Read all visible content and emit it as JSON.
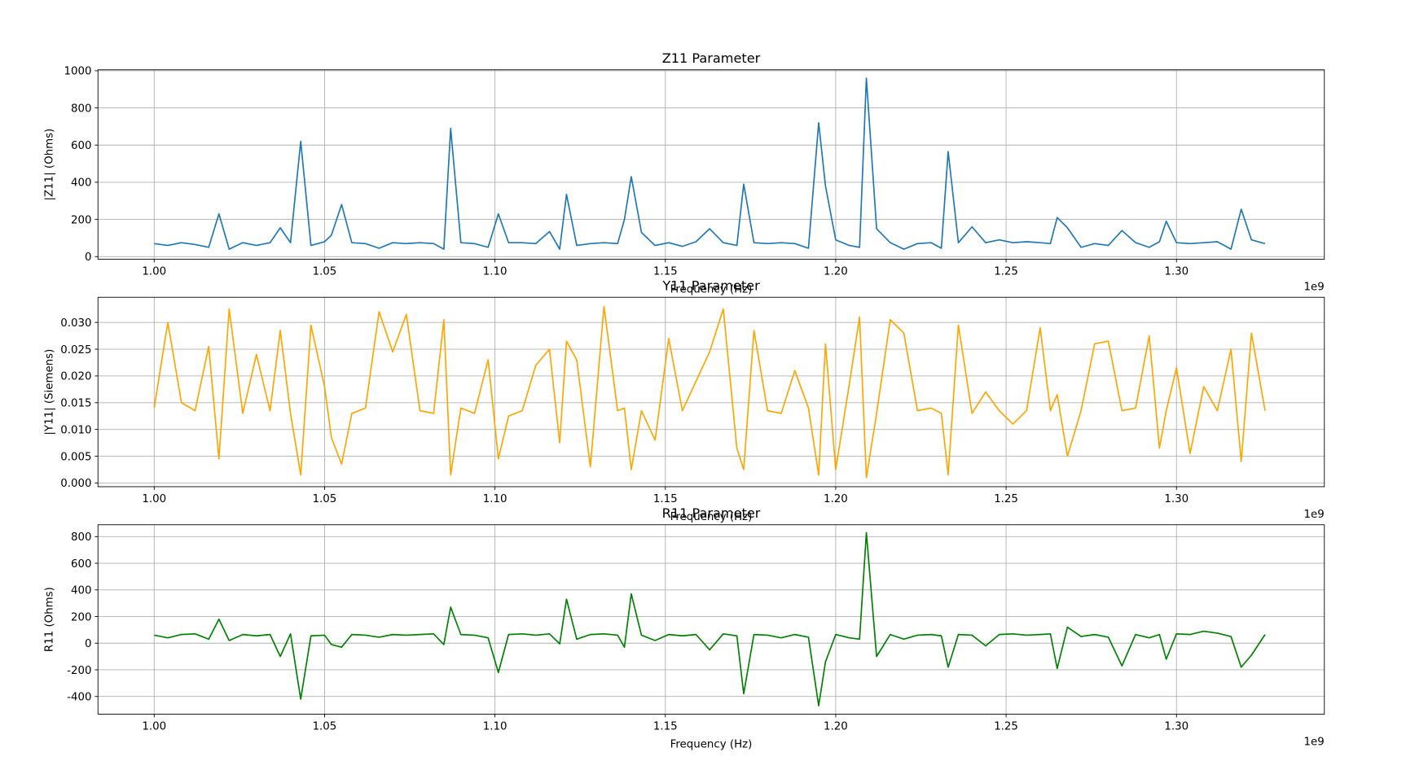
{
  "chart_data": [
    {
      "type": "line",
      "title": "Z11 Parameter",
      "xlabel": "Frequency (Hz)",
      "ylabel": "|Z11| (Ohms)",
      "x_offset_label": "1e9",
      "color": "#1f77b4",
      "grid": true,
      "x": [
        1000000000.0,
        1004000000.0,
        1008000000.0,
        1012000000.0,
        1016000000.0,
        1019000000.0,
        1022000000.0,
        1026000000.0,
        1030000000.0,
        1034000000.0,
        1037000000.0,
        1040000000.0,
        1043000000.0,
        1046000000.0,
        1050000000.0,
        1052000000.0,
        1055000000.0,
        1058000000.0,
        1062000000.0,
        1066000000.0,
        1070000000.0,
        1074000000.0,
        1078000000.0,
        1082000000.0,
        1085000000.0,
        1087000000.0,
        1090000000.0,
        1094000000.0,
        1098000000.0,
        1101000000.0,
        1104000000.0,
        1108000000.0,
        1112000000.0,
        1116000000.0,
        1119000000.0,
        1121000000.0,
        1124000000.0,
        1128000000.0,
        1132000000.0,
        1136000000.0,
        1138000000.0,
        1140000000.0,
        1143000000.0,
        1147000000.0,
        1151000000.0,
        1155000000.0,
        1159000000.0,
        1163000000.0,
        1167000000.0,
        1171000000.0,
        1173000000.0,
        1176000000.0,
        1180000000.0,
        1184000000.0,
        1188000000.0,
        1192000000.0,
        1195000000.0,
        1197000000.0,
        1200000000.0,
        1204000000.0,
        1207000000.0,
        1209000000.0,
        1212000000.0,
        1216000000.0,
        1220000000.0,
        1224000000.0,
        1228000000.0,
        1231000000.0,
        1233000000.0,
        1236000000.0,
        1240000000.0,
        1244000000.0,
        1248000000.0,
        1252000000.0,
        1256000000.0,
        1260000000.0,
        1263000000.0,
        1265000000.0,
        1268000000.0,
        1272000000.0,
        1276000000.0,
        1280000000.0,
        1284000000.0,
        1288000000.0,
        1292000000.0,
        1295000000.0,
        1297000000.0,
        1300000000.0,
        1304000000.0,
        1308000000.0,
        1312000000.0,
        1316000000.0,
        1319000000.0,
        1322000000.0,
        1326000000.0
      ],
      "values": [
        70,
        60,
        75,
        65,
        50,
        230,
        40,
        75,
        60,
        75,
        155,
        75,
        620,
        60,
        80,
        115,
        280,
        75,
        70,
        45,
        75,
        70,
        75,
        70,
        40,
        690,
        75,
        70,
        50,
        230,
        75,
        75,
        70,
        135,
        40,
        335,
        60,
        70,
        75,
        70,
        200,
        430,
        130,
        60,
        75,
        55,
        80,
        150,
        75,
        60,
        390,
        75,
        70,
        75,
        70,
        45,
        720,
        380,
        90,
        60,
        50,
        960,
        150,
        75,
        40,
        70,
        75,
        45,
        565,
        75,
        160,
        75,
        90,
        75,
        80,
        75,
        70,
        210,
        155,
        50,
        70,
        60,
        140,
        75,
        50,
        80,
        190,
        75,
        70,
        75,
        80,
        40,
        255,
        90,
        70
      ],
      "xlim": [
        983500000.0,
        1343400000.0
      ],
      "xticks": [
        {
          "value": 1000000000.0,
          "label": "1.00"
        },
        {
          "value": 1050000000.0,
          "label": "1.05"
        },
        {
          "value": 1100000000.0,
          "label": "1.10"
        },
        {
          "value": 1150000000.0,
          "label": "1.15"
        },
        {
          "value": 1200000000.0,
          "label": "1.20"
        },
        {
          "value": 1250000000.0,
          "label": "1.25"
        },
        {
          "value": 1300000000.0,
          "label": "1.30"
        }
      ],
      "ylim": [
        -14,
        1005
      ],
      "yticks": [
        0,
        200,
        400,
        600,
        800,
        1000
      ]
    },
    {
      "type": "line",
      "title": "Y11 Parameter",
      "xlabel": "Frequency (Hz)",
      "ylabel": "|Y11| (Siemens)",
      "x_offset_label": "1e9",
      "color": "#ffa500",
      "grid": true,
      "x": [
        1000000000.0,
        1004000000.0,
        1008000000.0,
        1012000000.0,
        1016000000.0,
        1019000000.0,
        1022000000.0,
        1026000000.0,
        1030000000.0,
        1034000000.0,
        1037000000.0,
        1040000000.0,
        1043000000.0,
        1046000000.0,
        1050000000.0,
        1052000000.0,
        1055000000.0,
        1058000000.0,
        1062000000.0,
        1066000000.0,
        1070000000.0,
        1074000000.0,
        1078000000.0,
        1082000000.0,
        1085000000.0,
        1087000000.0,
        1090000000.0,
        1094000000.0,
        1098000000.0,
        1101000000.0,
        1104000000.0,
        1108000000.0,
        1112000000.0,
        1116000000.0,
        1119000000.0,
        1121000000.0,
        1124000000.0,
        1128000000.0,
        1132000000.0,
        1136000000.0,
        1138000000.0,
        1140000000.0,
        1143000000.0,
        1147000000.0,
        1151000000.0,
        1155000000.0,
        1159000000.0,
        1163000000.0,
        1167000000.0,
        1171000000.0,
        1173000000.0,
        1176000000.0,
        1180000000.0,
        1184000000.0,
        1188000000.0,
        1192000000.0,
        1195000000.0,
        1197000000.0,
        1200000000.0,
        1204000000.0,
        1207000000.0,
        1209000000.0,
        1212000000.0,
        1216000000.0,
        1220000000.0,
        1224000000.0,
        1228000000.0,
        1231000000.0,
        1233000000.0,
        1236000000.0,
        1240000000.0,
        1244000000.0,
        1248000000.0,
        1252000000.0,
        1256000000.0,
        1260000000.0,
        1263000000.0,
        1265000000.0,
        1268000000.0,
        1272000000.0,
        1276000000.0,
        1280000000.0,
        1284000000.0,
        1288000000.0,
        1292000000.0,
        1295000000.0,
        1297000000.0,
        1300000000.0,
        1304000000.0,
        1308000000.0,
        1312000000.0,
        1316000000.0,
        1319000000.0,
        1322000000.0,
        1326000000.0
      ],
      "values": [
        0.014,
        0.03,
        0.015,
        0.0135,
        0.0255,
        0.0045,
        0.0325,
        0.013,
        0.024,
        0.0135,
        0.0285,
        0.013,
        0.0015,
        0.0295,
        0.018,
        0.0085,
        0.0035,
        0.013,
        0.014,
        0.032,
        0.0245,
        0.0315,
        0.0135,
        0.013,
        0.0305,
        0.0015,
        0.014,
        0.013,
        0.023,
        0.0045,
        0.0125,
        0.0135,
        0.022,
        0.025,
        0.0075,
        0.0265,
        0.023,
        0.003,
        0.033,
        0.0135,
        0.014,
        0.0025,
        0.0135,
        0.008,
        0.027,
        0.0135,
        0.019,
        0.0245,
        0.0325,
        0.0065,
        0.0025,
        0.0285,
        0.0135,
        0.013,
        0.021,
        0.014,
        0.0015,
        0.026,
        0.0025,
        0.0185,
        0.031,
        0.001,
        0.013,
        0.0305,
        0.028,
        0.0135,
        0.014,
        0.013,
        0.0015,
        0.0295,
        0.013,
        0.017,
        0.0135,
        0.011,
        0.0135,
        0.029,
        0.0135,
        0.0165,
        0.005,
        0.0135,
        0.026,
        0.0265,
        0.0135,
        0.014,
        0.0275,
        0.0065,
        0.0135,
        0.0215,
        0.0055,
        0.018,
        0.0135,
        0.025,
        0.004,
        0.028,
        0.0135
      ],
      "xlim": [
        983500000.0,
        1343400000.0
      ],
      "xticks": [
        {
          "value": 1000000000.0,
          "label": "1.00"
        },
        {
          "value": 1050000000.0,
          "label": "1.05"
        },
        {
          "value": 1100000000.0,
          "label": "1.10"
        },
        {
          "value": 1150000000.0,
          "label": "1.15"
        },
        {
          "value": 1200000000.0,
          "label": "1.20"
        },
        {
          "value": 1250000000.0,
          "label": "1.25"
        },
        {
          "value": 1300000000.0,
          "label": "1.30"
        }
      ],
      "ylim": [
        -0.0007,
        0.0347
      ],
      "yticks": [
        {
          "value": 0,
          "label": "0.000"
        },
        {
          "value": 0.005,
          "label": "0.005"
        },
        {
          "value": 0.01,
          "label": "0.010"
        },
        {
          "value": 0.015,
          "label": "0.015"
        },
        {
          "value": 0.02,
          "label": "0.020"
        },
        {
          "value": 0.025,
          "label": "0.025"
        },
        {
          "value": 0.03,
          "label": "0.030"
        }
      ]
    },
    {
      "type": "line",
      "title": "R11 Parameter",
      "xlabel": "Frequency (Hz)",
      "ylabel": "R11 (Ohms)",
      "x_offset_label": "1e9",
      "color": "#008000",
      "grid": true,
      "x": [
        1000000000.0,
        1004000000.0,
        1008000000.0,
        1012000000.0,
        1016000000.0,
        1019000000.0,
        1022000000.0,
        1026000000.0,
        1030000000.0,
        1034000000.0,
        1037000000.0,
        1040000000.0,
        1043000000.0,
        1046000000.0,
        1050000000.0,
        1052000000.0,
        1055000000.0,
        1058000000.0,
        1062000000.0,
        1066000000.0,
        1070000000.0,
        1074000000.0,
        1078000000.0,
        1082000000.0,
        1085000000.0,
        1087000000.0,
        1090000000.0,
        1094000000.0,
        1098000000.0,
        1101000000.0,
        1104000000.0,
        1108000000.0,
        1112000000.0,
        1116000000.0,
        1119000000.0,
        1121000000.0,
        1124000000.0,
        1128000000.0,
        1132000000.0,
        1136000000.0,
        1138000000.0,
        1140000000.0,
        1143000000.0,
        1147000000.0,
        1151000000.0,
        1155000000.0,
        1159000000.0,
        1163000000.0,
        1167000000.0,
        1171000000.0,
        1173000000.0,
        1176000000.0,
        1180000000.0,
        1184000000.0,
        1188000000.0,
        1192000000.0,
        1195000000.0,
        1197000000.0,
        1200000000.0,
        1204000000.0,
        1207000000.0,
        1209000000.0,
        1212000000.0,
        1216000000.0,
        1220000000.0,
        1224000000.0,
        1228000000.0,
        1231000000.0,
        1233000000.0,
        1236000000.0,
        1240000000.0,
        1244000000.0,
        1248000000.0,
        1252000000.0,
        1256000000.0,
        1260000000.0,
        1263000000.0,
        1265000000.0,
        1268000000.0,
        1272000000.0,
        1276000000.0,
        1280000000.0,
        1284000000.0,
        1288000000.0,
        1292000000.0,
        1295000000.0,
        1297000000.0,
        1300000000.0,
        1304000000.0,
        1308000000.0,
        1312000000.0,
        1316000000.0,
        1319000000.0,
        1322000000.0,
        1326000000.0
      ],
      "values": [
        60,
        40,
        65,
        70,
        30,
        180,
        20,
        65,
        55,
        65,
        -100,
        70,
        -420,
        55,
        60,
        -10,
        -30,
        65,
        60,
        45,
        65,
        60,
        65,
        70,
        -10,
        270,
        65,
        60,
        40,
        -220,
        65,
        70,
        60,
        70,
        -5,
        330,
        30,
        65,
        70,
        60,
        -30,
        370,
        60,
        20,
        65,
        55,
        65,
        -50,
        70,
        55,
        -380,
        65,
        60,
        40,
        65,
        45,
        -470,
        -140,
        65,
        40,
        30,
        830,
        -100,
        65,
        30,
        60,
        65,
        55,
        -180,
        65,
        60,
        -20,
        65,
        70,
        60,
        65,
        70,
        -190,
        120,
        50,
        65,
        45,
        -170,
        65,
        40,
        65,
        -120,
        70,
        65,
        90,
        75,
        50,
        -180,
        -90,
        65
      ],
      "xlim": [
        983500000.0,
        1343400000.0
      ],
      "xticks": [
        {
          "value": 1000000000.0,
          "label": "1.00"
        },
        {
          "value": 1050000000.0,
          "label": "1.05"
        },
        {
          "value": 1100000000.0,
          "label": "1.10"
        },
        {
          "value": 1150000000.0,
          "label": "1.15"
        },
        {
          "value": 1200000000.0,
          "label": "1.20"
        },
        {
          "value": 1250000000.0,
          "label": "1.25"
        },
        {
          "value": 1300000000.0,
          "label": "1.30"
        }
      ],
      "ylim": [
        -533,
        889
      ],
      "yticks": [
        -400,
        -200,
        0,
        200,
        400,
        600,
        800
      ]
    }
  ]
}
